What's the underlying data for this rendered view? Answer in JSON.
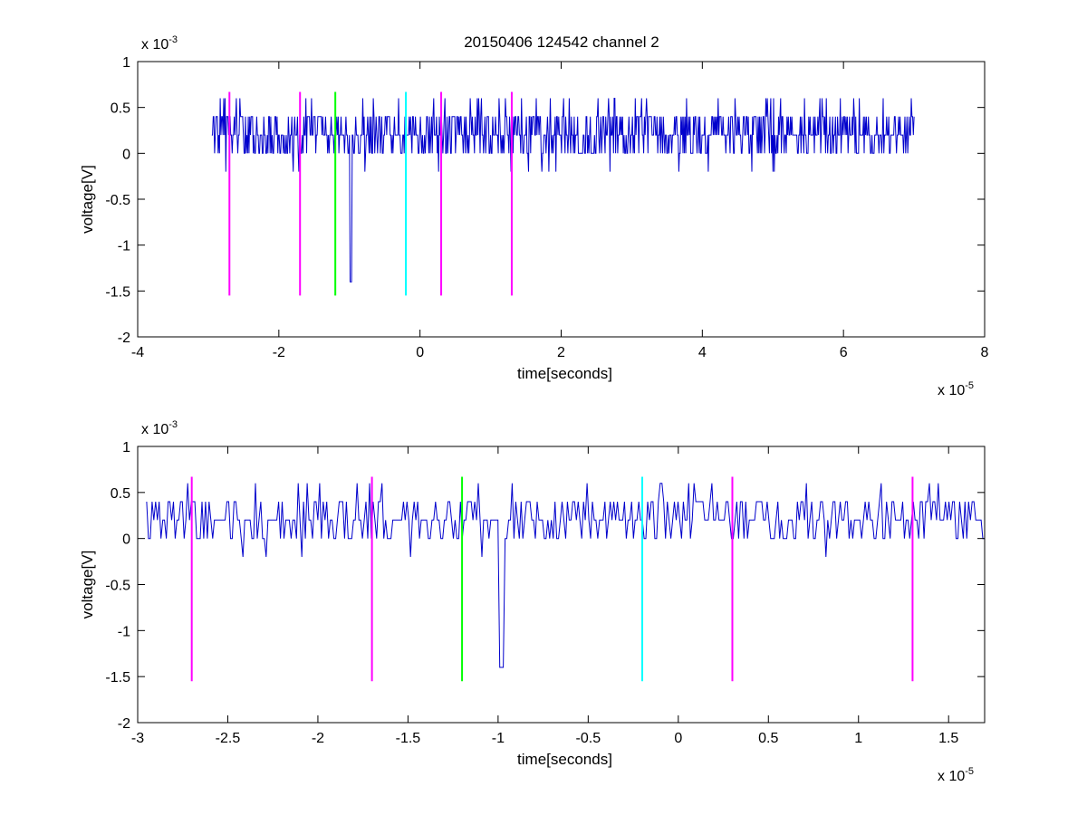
{
  "figure_title": "20150406 124542 channel 2",
  "colors": {
    "signal": "#0000cc",
    "magenta": "#ff00ff",
    "green": "#00ff00",
    "cyan": "#00ffff",
    "axes": "#000000"
  },
  "chart_data": [
    {
      "type": "line",
      "title": "20150406 124542 channel 2",
      "xlabel": "time[seconds]",
      "ylabel": "voltage[V]",
      "x_exponent_label": "x 10",
      "x_exponent": "-5",
      "y_exponent_label": "x 10",
      "y_exponent": "-3",
      "xlim": [
        -4,
        8
      ],
      "ylim": [
        -2,
        1
      ],
      "x_ticks": [
        "-4",
        "-2",
        "0",
        "2",
        "4",
        "6",
        "8"
      ],
      "y_ticks": [
        "-2",
        "-1.5",
        "-1",
        "-0.5",
        "0",
        "0.5",
        "1"
      ],
      "x_tick_values": [
        -4,
        -2,
        0,
        2,
        4,
        6,
        8
      ],
      "y_tick_values": [
        -2,
        -1.5,
        -1,
        -0.5,
        0,
        0.5,
        1
      ],
      "signal_x_range": [
        -2.95,
        7.0
      ],
      "signal_baseline": 0.2,
      "signal_levels": [
        0.0,
        0.2,
        0.4,
        0.6
      ],
      "spike": {
        "x": -0.98,
        "y": -1.4
      },
      "markers": [
        {
          "x": -2.7,
          "color": "magenta",
          "y_range": [
            -1.55,
            0.67
          ]
        },
        {
          "x": -1.7,
          "color": "magenta",
          "y_range": [
            -1.55,
            0.67
          ]
        },
        {
          "x": -1.2,
          "color": "green",
          "y_range": [
            -1.55,
            0.67
          ]
        },
        {
          "x": -0.2,
          "color": "cyan",
          "y_range": [
            -1.55,
            0.67
          ]
        },
        {
          "x": 0.3,
          "color": "magenta",
          "y_range": [
            -1.55,
            0.67
          ]
        },
        {
          "x": 1.3,
          "color": "magenta",
          "y_range": [
            -1.55,
            0.67
          ]
        }
      ]
    },
    {
      "type": "line",
      "title": "",
      "xlabel": "time[seconds]",
      "ylabel": "voltage[V]",
      "x_exponent_label": "x 10",
      "x_exponent": "-5",
      "y_exponent_label": "x 10",
      "y_exponent": "-3",
      "xlim": [
        -3.0,
        1.7
      ],
      "ylim": [
        -2,
        1
      ],
      "x_ticks": [
        "-3",
        "-2.5",
        "-2",
        "-1.5",
        "-1",
        "-0.5",
        "0",
        "0.5",
        "1",
        "1.5"
      ],
      "y_ticks": [
        "-2",
        "-1.5",
        "-1",
        "-0.5",
        "0",
        "0.5",
        "1"
      ],
      "x_tick_values": [
        -3,
        -2.5,
        -2,
        -1.5,
        -1,
        -0.5,
        0,
        0.5,
        1,
        1.5
      ],
      "y_tick_values": [
        -2,
        -1.5,
        -1,
        -0.5,
        0,
        0.5,
        1
      ],
      "signal_x_range": [
        -2.95,
        1.7
      ],
      "signal_baseline": 0.2,
      "signal_levels": [
        0.0,
        0.2,
        0.4,
        0.6
      ],
      "spike": {
        "x": -0.98,
        "y": -1.4
      },
      "markers": [
        {
          "x": -2.7,
          "color": "magenta",
          "y_range": [
            -1.55,
            0.67
          ]
        },
        {
          "x": -1.7,
          "color": "magenta",
          "y_range": [
            -1.55,
            0.67
          ]
        },
        {
          "x": -1.2,
          "color": "green",
          "y_range": [
            -1.55,
            0.67
          ]
        },
        {
          "x": -0.2,
          "color": "cyan",
          "y_range": [
            -1.55,
            0.67
          ]
        },
        {
          "x": 0.3,
          "color": "magenta",
          "y_range": [
            -1.55,
            0.67
          ]
        },
        {
          "x": 1.3,
          "color": "magenta",
          "y_range": [
            -1.55,
            0.67
          ]
        }
      ]
    }
  ]
}
